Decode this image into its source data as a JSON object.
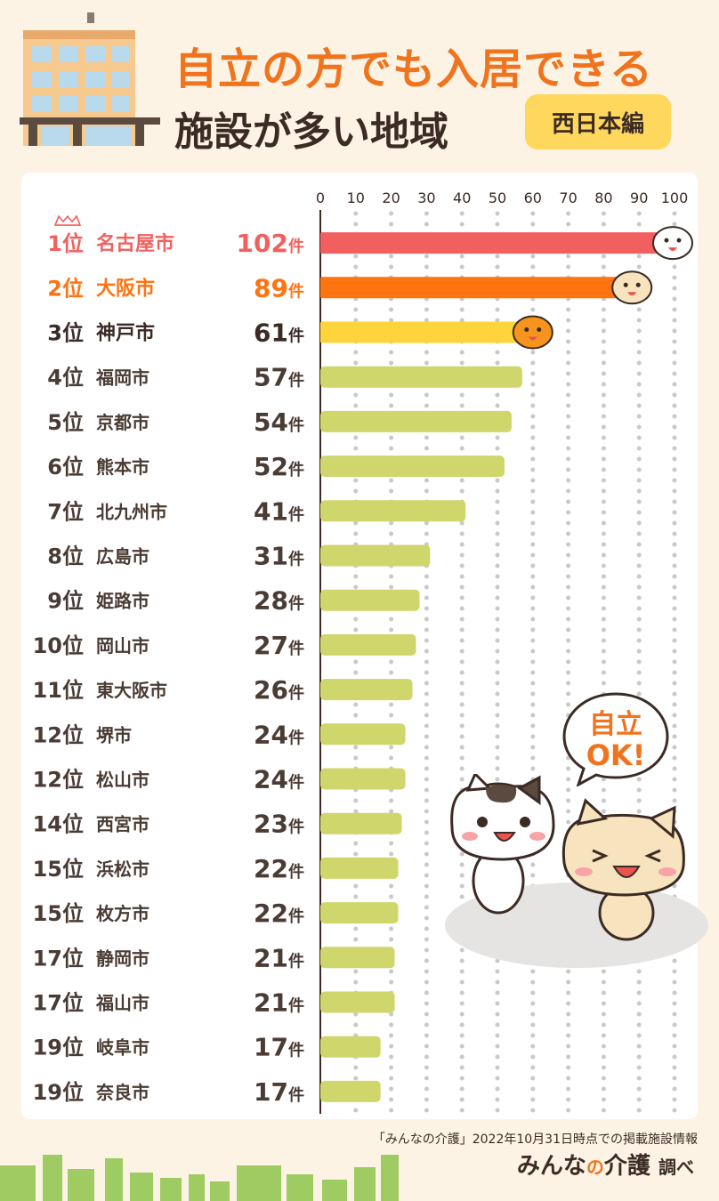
{
  "header": {
    "title_line1": "自立の方でも入居できる",
    "title_line2": "施設が多い地域",
    "badge": "西日本編"
  },
  "bubble": {
    "line1": "自立",
    "line2": "OK!"
  },
  "footer": {
    "note": "「みんなの介護」2022年10月31日時点での掲載施設情報",
    "brand_a": "みんな",
    "brand_no": "の",
    "brand_b": "介護",
    "brand_c": "調べ"
  },
  "colors": {
    "background": "#fdf3e4",
    "accent": "#f0731e",
    "rank1": "#f25f5f",
    "rank2": "#ff7311",
    "rank3": "#fed43c",
    "others": "#cfd66b",
    "badge": "#fed75c"
  },
  "chart_data": {
    "type": "bar",
    "orientation": "horizontal",
    "xlim": [
      0,
      100
    ],
    "ticks": [
      0,
      10,
      20,
      30,
      40,
      50,
      60,
      70,
      80,
      90,
      100
    ],
    "grid": true,
    "unit": "件",
    "rows": [
      {
        "rank": "1位",
        "city": "名古屋市",
        "value": 102
      },
      {
        "rank": "2位",
        "city": "大阪市",
        "value": 89
      },
      {
        "rank": "3位",
        "city": "神戸市",
        "value": 61
      },
      {
        "rank": "4位",
        "city": "福岡市",
        "value": 57
      },
      {
        "rank": "5位",
        "city": "京都市",
        "value": 54
      },
      {
        "rank": "6位",
        "city": "熊本市",
        "value": 52
      },
      {
        "rank": "7位",
        "city": "北九州市",
        "value": 41
      },
      {
        "rank": "8位",
        "city": "広島市",
        "value": 31
      },
      {
        "rank": "9位",
        "city": "姫路市",
        "value": 28
      },
      {
        "rank": "10位",
        "city": "岡山市",
        "value": 27
      },
      {
        "rank": "11位",
        "city": "東大阪市",
        "value": 26
      },
      {
        "rank": "12位",
        "city": "堺市",
        "value": 24
      },
      {
        "rank": "12位",
        "city": "松山市",
        "value": 24
      },
      {
        "rank": "14位",
        "city": "西宮市",
        "value": 23
      },
      {
        "rank": "15位",
        "city": "浜松市",
        "value": 22
      },
      {
        "rank": "15位",
        "city": "枚方市",
        "value": 22
      },
      {
        "rank": "17位",
        "city": "静岡市",
        "value": 21
      },
      {
        "rank": "17位",
        "city": "福山市",
        "value": 21
      },
      {
        "rank": "19位",
        "city": "岐阜市",
        "value": 17
      },
      {
        "rank": "19位",
        "city": "奈良市",
        "value": 17
      }
    ]
  }
}
